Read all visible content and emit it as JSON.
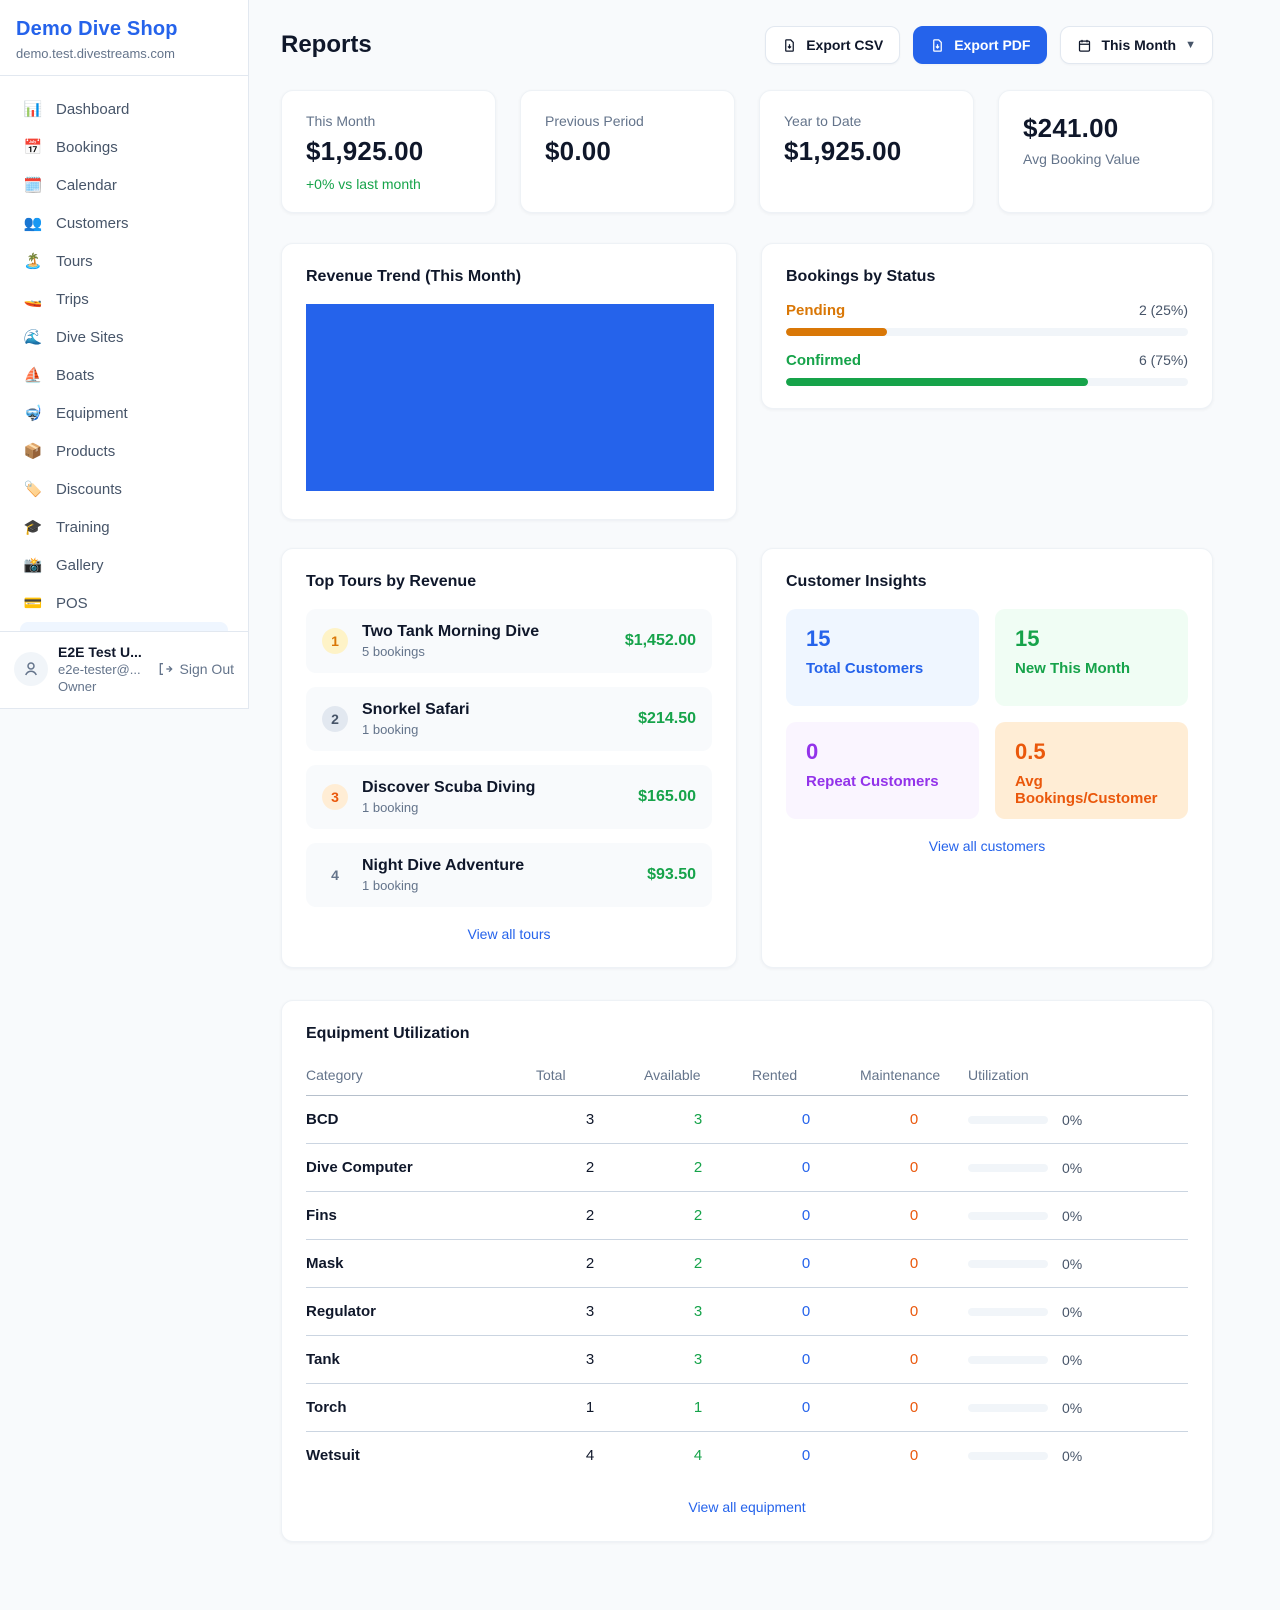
{
  "colors": {
    "accent_blue": "#2563eb",
    "green": "#16a34a",
    "pending_orange": "#d97706",
    "maintenance_orange": "#ea580c",
    "purple": "#9333ea"
  },
  "sidebar": {
    "shop_name": "Demo Dive Shop",
    "shop_domain": "demo.test.divestreams.com",
    "items": [
      {
        "emoji": "📊",
        "label": "Dashboard"
      },
      {
        "emoji": "📅",
        "label": "Bookings"
      },
      {
        "emoji": "🗓️",
        "label": "Calendar"
      },
      {
        "emoji": "👥",
        "label": "Customers"
      },
      {
        "emoji": "🏝️",
        "label": "Tours"
      },
      {
        "emoji": "🚤",
        "label": "Trips"
      },
      {
        "emoji": "🌊",
        "label": "Dive Sites"
      },
      {
        "emoji": "⛵",
        "label": "Boats"
      },
      {
        "emoji": "🤿",
        "label": "Equipment"
      },
      {
        "emoji": "📦",
        "label": "Products"
      },
      {
        "emoji": "🏷️",
        "label": "Discounts"
      },
      {
        "emoji": "🎓",
        "label": "Training"
      },
      {
        "emoji": "📸",
        "label": "Gallery"
      },
      {
        "emoji": "💳",
        "label": "POS"
      }
    ],
    "user": {
      "name": "E2E Test U...",
      "email": "e2e-tester@...",
      "role": "Owner",
      "sign_out_label": "Sign Out"
    }
  },
  "header": {
    "title": "Reports",
    "export_csv_label": "Export CSV",
    "export_pdf_label": "Export PDF",
    "period_label": "This Month"
  },
  "stats": [
    {
      "label": "This Month",
      "value": "$1,925.00",
      "delta": "+0% vs last month"
    },
    {
      "label": "Previous Period",
      "value": "$0.00"
    },
    {
      "label": "Year to Date",
      "value": "$1,925.00"
    },
    {
      "label": "Avg Booking Value",
      "value": "$241.00"
    }
  ],
  "revenue_trend": {
    "title": "Revenue Trend (This Month)"
  },
  "chart_data": {
    "type": "bar",
    "title": "Revenue Trend (This Month)",
    "categories": [
      "This Month"
    ],
    "values": [
      1925
    ],
    "bar_color": "#2563eb",
    "note": "single full-width bar filling entire plot area, no axes or labels"
  },
  "bookings_by_status": {
    "title": "Bookings by Status",
    "statuses": [
      {
        "label": "Pending",
        "count_text": "2 (25%)",
        "percent": 25,
        "color": "#d97706"
      },
      {
        "label": "Confirmed",
        "count_text": "6 (75%)",
        "percent": 75,
        "color": "#16a34a"
      }
    ]
  },
  "top_tours": {
    "title": "Top Tours by Revenue",
    "view_all_label": "View all tours",
    "tours": [
      {
        "rank": "1",
        "name": "Two Tank Morning Dive",
        "bookings": "5 bookings",
        "revenue": "$1,452.00"
      },
      {
        "rank": "2",
        "name": "Snorkel Safari",
        "bookings": "1 booking",
        "revenue": "$214.50"
      },
      {
        "rank": "3",
        "name": "Discover Scuba Diving",
        "bookings": "1 booking",
        "revenue": "$165.00"
      },
      {
        "rank": "4",
        "name": "Night Dive Adventure",
        "bookings": "1 booking",
        "revenue": "$93.50"
      }
    ]
  },
  "customer_insights": {
    "title": "Customer Insights",
    "view_all_label": "View all customers",
    "tiles": [
      {
        "value": "15",
        "label": "Total Customers",
        "theme": "blue"
      },
      {
        "value": "15",
        "label": "New This Month",
        "theme": "green"
      },
      {
        "value": "0",
        "label": "Repeat Customers",
        "theme": "purple"
      },
      {
        "value": "0.5",
        "label": "Avg Bookings/Customer",
        "theme": "orange"
      }
    ]
  },
  "equipment": {
    "title": "Equipment Utilization",
    "view_all_label": "View all equipment",
    "headers": [
      "Category",
      "Total",
      "Available",
      "Rented",
      "Maintenance",
      "Utilization"
    ],
    "rows": [
      {
        "category": "BCD",
        "total": "3",
        "available": "3",
        "rented": "0",
        "maintenance": "0",
        "utilization_pct": 0,
        "utilization": "0%"
      },
      {
        "category": "Dive Computer",
        "total": "2",
        "available": "2",
        "rented": "0",
        "maintenance": "0",
        "utilization_pct": 0,
        "utilization": "0%"
      },
      {
        "category": "Fins",
        "total": "2",
        "available": "2",
        "rented": "0",
        "maintenance": "0",
        "utilization_pct": 0,
        "utilization": "0%"
      },
      {
        "category": "Mask",
        "total": "2",
        "available": "2",
        "rented": "0",
        "maintenance": "0",
        "utilization_pct": 0,
        "utilization": "0%"
      },
      {
        "category": "Regulator",
        "total": "3",
        "available": "3",
        "rented": "0",
        "maintenance": "0",
        "utilization_pct": 0,
        "utilization": "0%"
      },
      {
        "category": "Tank",
        "total": "3",
        "available": "3",
        "rented": "0",
        "maintenance": "0",
        "utilization_pct": 0,
        "utilization": "0%"
      },
      {
        "category": "Torch",
        "total": "1",
        "available": "1",
        "rented": "0",
        "maintenance": "0",
        "utilization_pct": 0,
        "utilization": "0%"
      },
      {
        "category": "Wetsuit",
        "total": "4",
        "available": "4",
        "rented": "0",
        "maintenance": "0",
        "utilization_pct": 0,
        "utilization": "0%"
      }
    ]
  }
}
